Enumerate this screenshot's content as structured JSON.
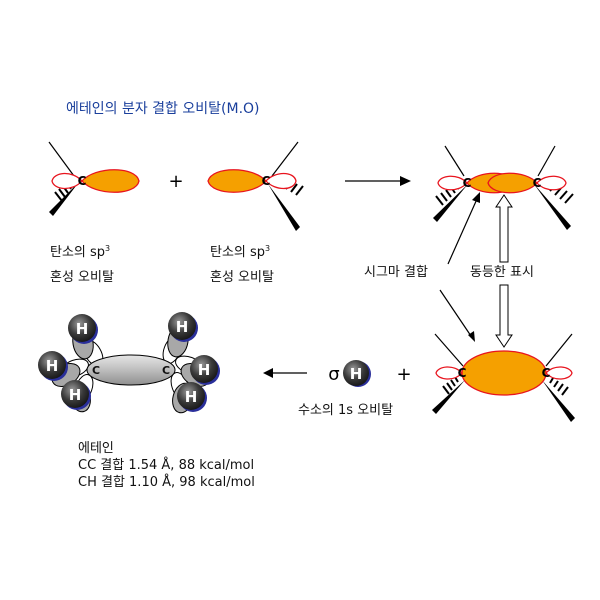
{
  "title": "에테인의 분자 결합 오비탈(M.O)",
  "atoms": {
    "carbon": "C",
    "hydrogen": "H"
  },
  "operators": {
    "plus": "+"
  },
  "sp3_label": {
    "prefix": "탄소의 ",
    "sp": "sp",
    "sup": "3",
    "line2": "혼성 오비탈"
  },
  "sigma_bond_label": "시그마 결합",
  "equivalent_label": "동등한 표시",
  "sigma_symbol": "σ",
  "hydrogen_label": "수소의 1s 오비탈",
  "molecule": {
    "name": "에테인",
    "cc_bond": "CC 결합 1.54 Å, 88 kcal/mol",
    "ch_bond": "CH 결합 1.10 Å, 98 kcal/mol"
  },
  "colors": {
    "lobe_fill": "#f5a000",
    "lobe_stroke": "#e8141e",
    "title": "#1a3f9c",
    "hydrogen_dark": "#1e1e1e",
    "hydrogen_shadow": "#2a2f9a",
    "bond_grey": "#bdbdbd"
  }
}
